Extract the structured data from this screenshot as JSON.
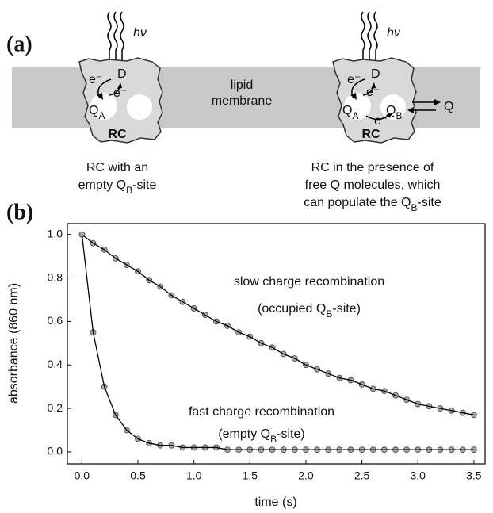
{
  "diagram": {
    "panel_label": "(a)",
    "light": [
      "hν",
      "hν"
    ],
    "membrane": [
      "lipid",
      "membrane"
    ],
    "left": {
      "donor": "D",
      "electrons": [
        "e⁻",
        "e⁻"
      ],
      "quinone_a": [
        "Q",
        "A"
      ],
      "label": "RC",
      "caption": [
        [
          "RC with an"
        ],
        [
          "empty Q",
          "B",
          "-site"
        ]
      ]
    },
    "right": {
      "donor": "D",
      "electrons": [
        "e⁻",
        "e⁻",
        "e⁻"
      ],
      "quinone_a": [
        "Q",
        "A"
      ],
      "quinone_b": [
        "Q",
        "B"
      ],
      "free_quinone": "Q",
      "label": "RC",
      "caption": [
        [
          "RC in the presence of"
        ],
        [
          "free Q molecules, which"
        ],
        [
          "can populate the Q",
          "B",
          "-site"
        ]
      ]
    }
  },
  "chart_data": {
    "type": "scatter",
    "panel_label": "(b)",
    "x_label": "time (s)",
    "y_label": "absorbance (860 nm)",
    "x": [
      0.0,
      0.1,
      0.2,
      0.3,
      0.4,
      0.5,
      0.6,
      0.7,
      0.8,
      0.9,
      1.0,
      1.1,
      1.2,
      1.3,
      1.4,
      1.5,
      1.6,
      1.7,
      1.8,
      1.9,
      2.0,
      2.1,
      2.2,
      2.3,
      2.4,
      2.5,
      2.6,
      2.7,
      2.8,
      2.9,
      3.0,
      3.1,
      3.2,
      3.3,
      3.4,
      3.5
    ],
    "series": [
      {
        "color": "#aaaaaa",
        "line_color": "#000000",
        "values": [
          1.0,
          0.96,
          0.93,
          0.89,
          0.86,
          0.83,
          0.79,
          0.76,
          0.72,
          0.69,
          0.66,
          0.63,
          0.6,
          0.58,
          0.55,
          0.53,
          0.5,
          0.48,
          0.45,
          0.43,
          0.4,
          0.38,
          0.36,
          0.34,
          0.33,
          0.31,
          0.29,
          0.28,
          0.26,
          0.24,
          0.22,
          0.21,
          0.2,
          0.19,
          0.18,
          0.17
        ]
      },
      {
        "color": "#aaaaaa",
        "line_color": "#000000",
        "values": [
          1.0,
          0.55,
          0.3,
          0.17,
          0.1,
          0.06,
          0.04,
          0.03,
          0.03,
          0.02,
          0.02,
          0.02,
          0.02,
          0.01,
          0.01,
          0.01,
          0.01,
          0.01,
          0.01,
          0.01,
          0.01,
          0.01,
          0.01,
          0.01,
          0.01,
          0.01,
          0.01,
          0.01,
          0.01,
          0.01,
          0.01,
          0.01,
          0.01,
          0.01,
          0.01,
          0.01
        ]
      }
    ],
    "annotations": [
      [
        [
          "slow charge recombination"
        ],
        [
          "(occupied Q",
          "B",
          "-site)"
        ]
      ],
      [
        [
          "fast charge recombination"
        ],
        [
          "(empty Q",
          "B",
          "-site)"
        ]
      ]
    ],
    "xlim": [
      -0.13,
      3.6
    ],
    "ylim": [
      -0.055,
      1.05
    ],
    "xticks": [
      {
        "value": 0,
        "label": "0.0"
      },
      0.5,
      {
        "value": 1,
        "label": "1.0"
      },
      1.5,
      {
        "value": 2,
        "label": "2.0"
      },
      2.5,
      {
        "value": 3,
        "label": "3.0"
      },
      3.5
    ],
    "yticks": [
      {
        "value": 0,
        "label": "0.0"
      },
      0.2,
      0.4,
      0.6,
      0.8,
      {
        "value": 1,
        "label": "1.0"
      }
    ]
  }
}
